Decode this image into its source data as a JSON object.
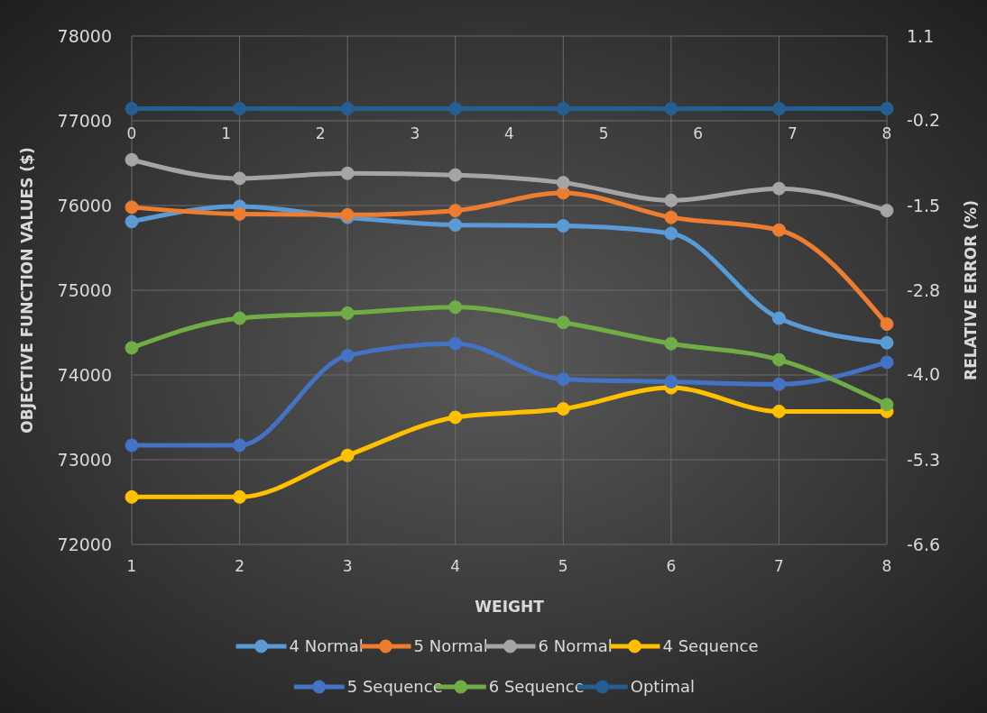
{
  "chart_data": {
    "type": "line",
    "xlabel": "WEIGHT",
    "ylabel": "OBJECTIVE FUNCTION VALUES ($)",
    "y2label": "RELATIVE ERROR (%)",
    "x": [
      1,
      2,
      3,
      4,
      5,
      6,
      7,
      8
    ],
    "xlim": [
      1,
      8
    ],
    "xticks": [
      1,
      2,
      3,
      4,
      5,
      6,
      7,
      8
    ],
    "ylim": [
      72000,
      78000
    ],
    "yticks": [
      72000,
      73000,
      74000,
      75000,
      76000,
      77000,
      78000
    ],
    "y2lim": [
      -6.6,
      1.1
    ],
    "y2ticks": [
      {
        "value": -6.6,
        "label": "-6.6"
      },
      {
        "value": -5.32,
        "label": "-5.3"
      },
      {
        "value": -4.03,
        "label": "-4.0"
      },
      {
        "value": -2.75,
        "label": "-2.8"
      },
      {
        "value": -1.47,
        "label": "-1.5"
      },
      {
        "value": -0.18,
        "label": "-0.2"
      },
      {
        "value": 1.1,
        "label": "1.1"
      }
    ],
    "x2lim": [
      0,
      8
    ],
    "x2ticks": [
      0,
      1,
      2,
      3,
      4,
      5,
      6,
      7,
      8
    ],
    "grid": true,
    "legend": "bottom",
    "marker": "circle",
    "line_style": "solid",
    "series": [
      {
        "name": "4 Normal",
        "color": "#5b9bd5",
        "values": [
          75810,
          75990,
          75860,
          75770,
          75760,
          75670,
          74670,
          74380
        ]
      },
      {
        "name": "5 Normal",
        "color": "#ed7d31",
        "values": [
          75980,
          75900,
          75890,
          75940,
          76150,
          75860,
          75710,
          74600
        ]
      },
      {
        "name": "6 Normal",
        "color": "#a5a5a5",
        "values": [
          76540,
          76320,
          76380,
          76360,
          76270,
          76060,
          76200,
          75940
        ]
      },
      {
        "name": "4 Sequence",
        "color": "#ffc000",
        "values": [
          72560,
          72560,
          73050,
          73500,
          73600,
          73850,
          73570,
          73570
        ]
      },
      {
        "name": "5 Sequence",
        "color": "#4472c4",
        "values": [
          73170,
          73170,
          74230,
          74370,
          73950,
          73920,
          73890,
          74150
        ]
      },
      {
        "name": "6 Sequence",
        "color": "#70ad47",
        "values": [
          74320,
          74670,
          74730,
          74800,
          74620,
          74370,
          74180,
          73650
        ]
      },
      {
        "name": "Optimal",
        "color": "#255e91",
        "axis": "y2",
        "values": [
          0,
          0,
          0,
          0,
          0,
          0,
          0,
          0
        ]
      }
    ]
  }
}
